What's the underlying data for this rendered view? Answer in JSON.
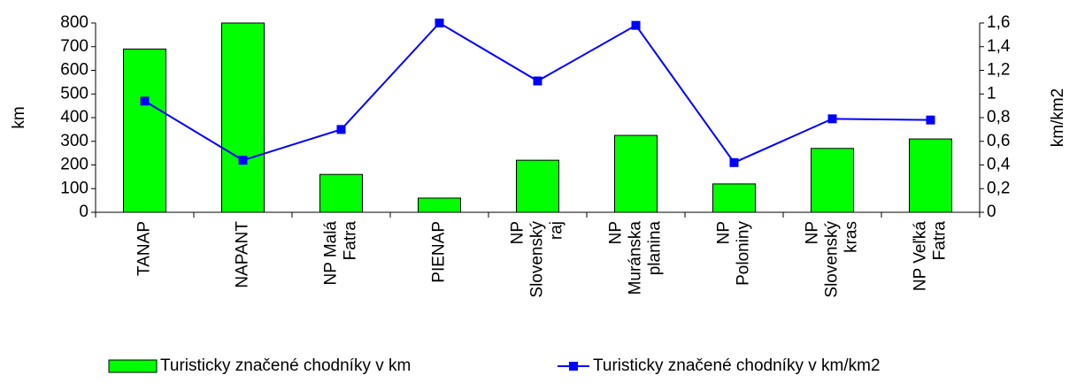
{
  "chart_data": {
    "type": "bar_line",
    "categories": [
      [
        "TANAP"
      ],
      [
        "NAPANT"
      ],
      [
        "NP Malá",
        "Fatra"
      ],
      [
        "PIENAP"
      ],
      [
        "NP",
        "Slovenský",
        "raj"
      ],
      [
        "NP",
        "Muránska",
        "planina"
      ],
      [
        "NP",
        "Poloniny"
      ],
      [
        "NP",
        "Slovenský",
        "kras"
      ],
      [
        "NP Veľká",
        "Fatra"
      ]
    ],
    "y_label": "km",
    "y2_label": "km/km2",
    "series": [
      {
        "name": "Turisticky značené chodníky v km",
        "color": "#00ff00",
        "type": "bar",
        "values": [
          690,
          800,
          160,
          60,
          220,
          325,
          120,
          270,
          310
        ]
      },
      {
        "name": "Turisticky značené chodníky v km/km2",
        "color": "#0000ff",
        "type": "line",
        "axis": "y2",
        "values": [
          0.94,
          0.44,
          0.7,
          1.6,
          1.11,
          1.58,
          0.42,
          0.79,
          0.78
        ]
      }
    ],
    "ylim": [
      0,
      800
    ],
    "yticks": [
      0,
      100,
      200,
      300,
      400,
      500,
      600,
      700,
      800
    ],
    "y2lim": [
      0,
      1.6
    ],
    "y2ticks": [
      0,
      {
        "value": 0.2,
        "label": "0,2"
      },
      {
        "value": 0.4,
        "label": "0,4"
      },
      {
        "value": 0.6,
        "label": "0,6"
      },
      {
        "value": 0.8,
        "label": "0,8"
      },
      1,
      {
        "value": 1.2,
        "label": "1,2"
      },
      {
        "value": 1.4,
        "label": "1,4"
      },
      {
        "value": 1.6,
        "label": "1,6"
      }
    ],
    "grid": false,
    "legend": "bottom"
  }
}
